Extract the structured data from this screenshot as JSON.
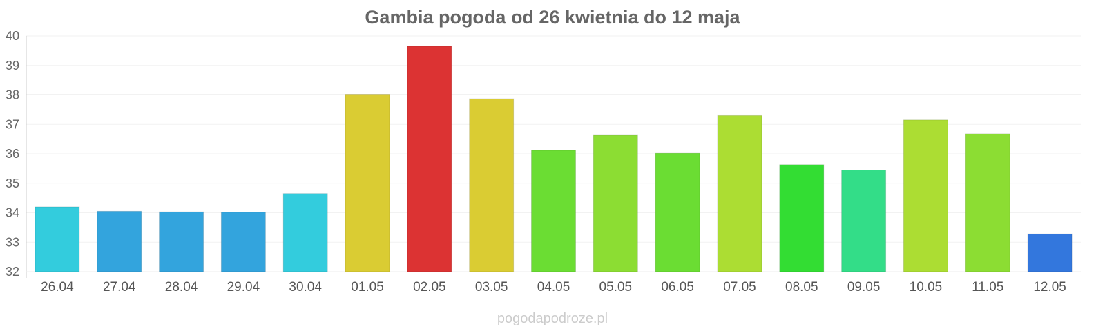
{
  "chart_data": {
    "type": "bar",
    "title": "Gambia pogoda od 26 kwietnia do 12 maja",
    "categories": [
      "26.04",
      "27.04",
      "28.04",
      "29.04",
      "30.04",
      "01.05",
      "02.05",
      "03.05",
      "04.05",
      "05.05",
      "06.05",
      "07.05",
      "08.05",
      "09.05",
      "10.05",
      "11.05",
      "12.05"
    ],
    "values": [
      34.2,
      34.05,
      34.03,
      34.02,
      34.65,
      38.0,
      39.65,
      37.87,
      36.12,
      36.63,
      36.02,
      37.3,
      35.63,
      35.45,
      37.15,
      36.68,
      33.28
    ],
    "colors": [
      "#33ccdd",
      "#33a4dd",
      "#33a4dd",
      "#33a4dd",
      "#33ccdd",
      "#dacc33",
      "#dc3333",
      "#dacc33",
      "#6bdd33",
      "#8cdd33",
      "#6bdd33",
      "#acdd33",
      "#33dd33",
      "#33dd88",
      "#acdd33",
      "#8cdd33",
      "#3377dd"
    ],
    "yticks": [
      "32",
      "33",
      "34",
      "35",
      "36",
      "37",
      "38",
      "39",
      "40"
    ],
    "ylim": [
      32,
      40
    ],
    "xlabel": "",
    "ylabel": "",
    "grid": true
  },
  "watermark": "pogodapodroze.pl"
}
